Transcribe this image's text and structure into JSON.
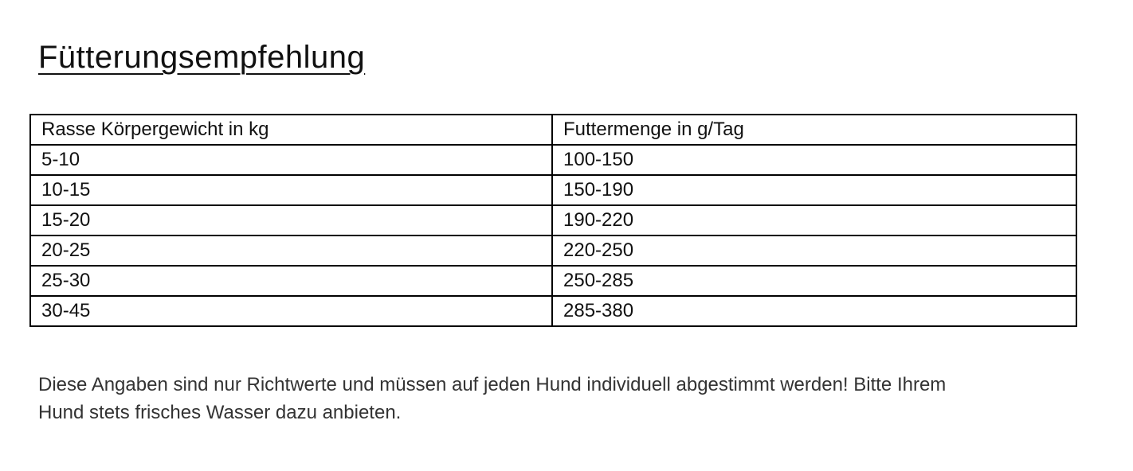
{
  "title": "Fütterungsempfehlung",
  "table": {
    "headers": [
      "Rasse Körpergewicht in kg",
      "Futtermenge in g/Tag"
    ],
    "rows": [
      [
        "5-10",
        "100-150"
      ],
      [
        "10-15",
        "150-190"
      ],
      [
        "15-20",
        "190-220"
      ],
      [
        "20-25",
        "220-250"
      ],
      [
        "25-30",
        "250-285"
      ],
      [
        "30-45",
        "285-380"
      ]
    ]
  },
  "note": "Diese Angaben sind nur Richtwerte und müssen auf jeden Hund individuell abgestimmt werden! Bitte Ihrem\nHund stets frisches Wasser dazu anbieten.",
  "colors": {
    "text": "#111111",
    "note_text": "#333333",
    "border": "#000000",
    "background": "#ffffff"
  }
}
